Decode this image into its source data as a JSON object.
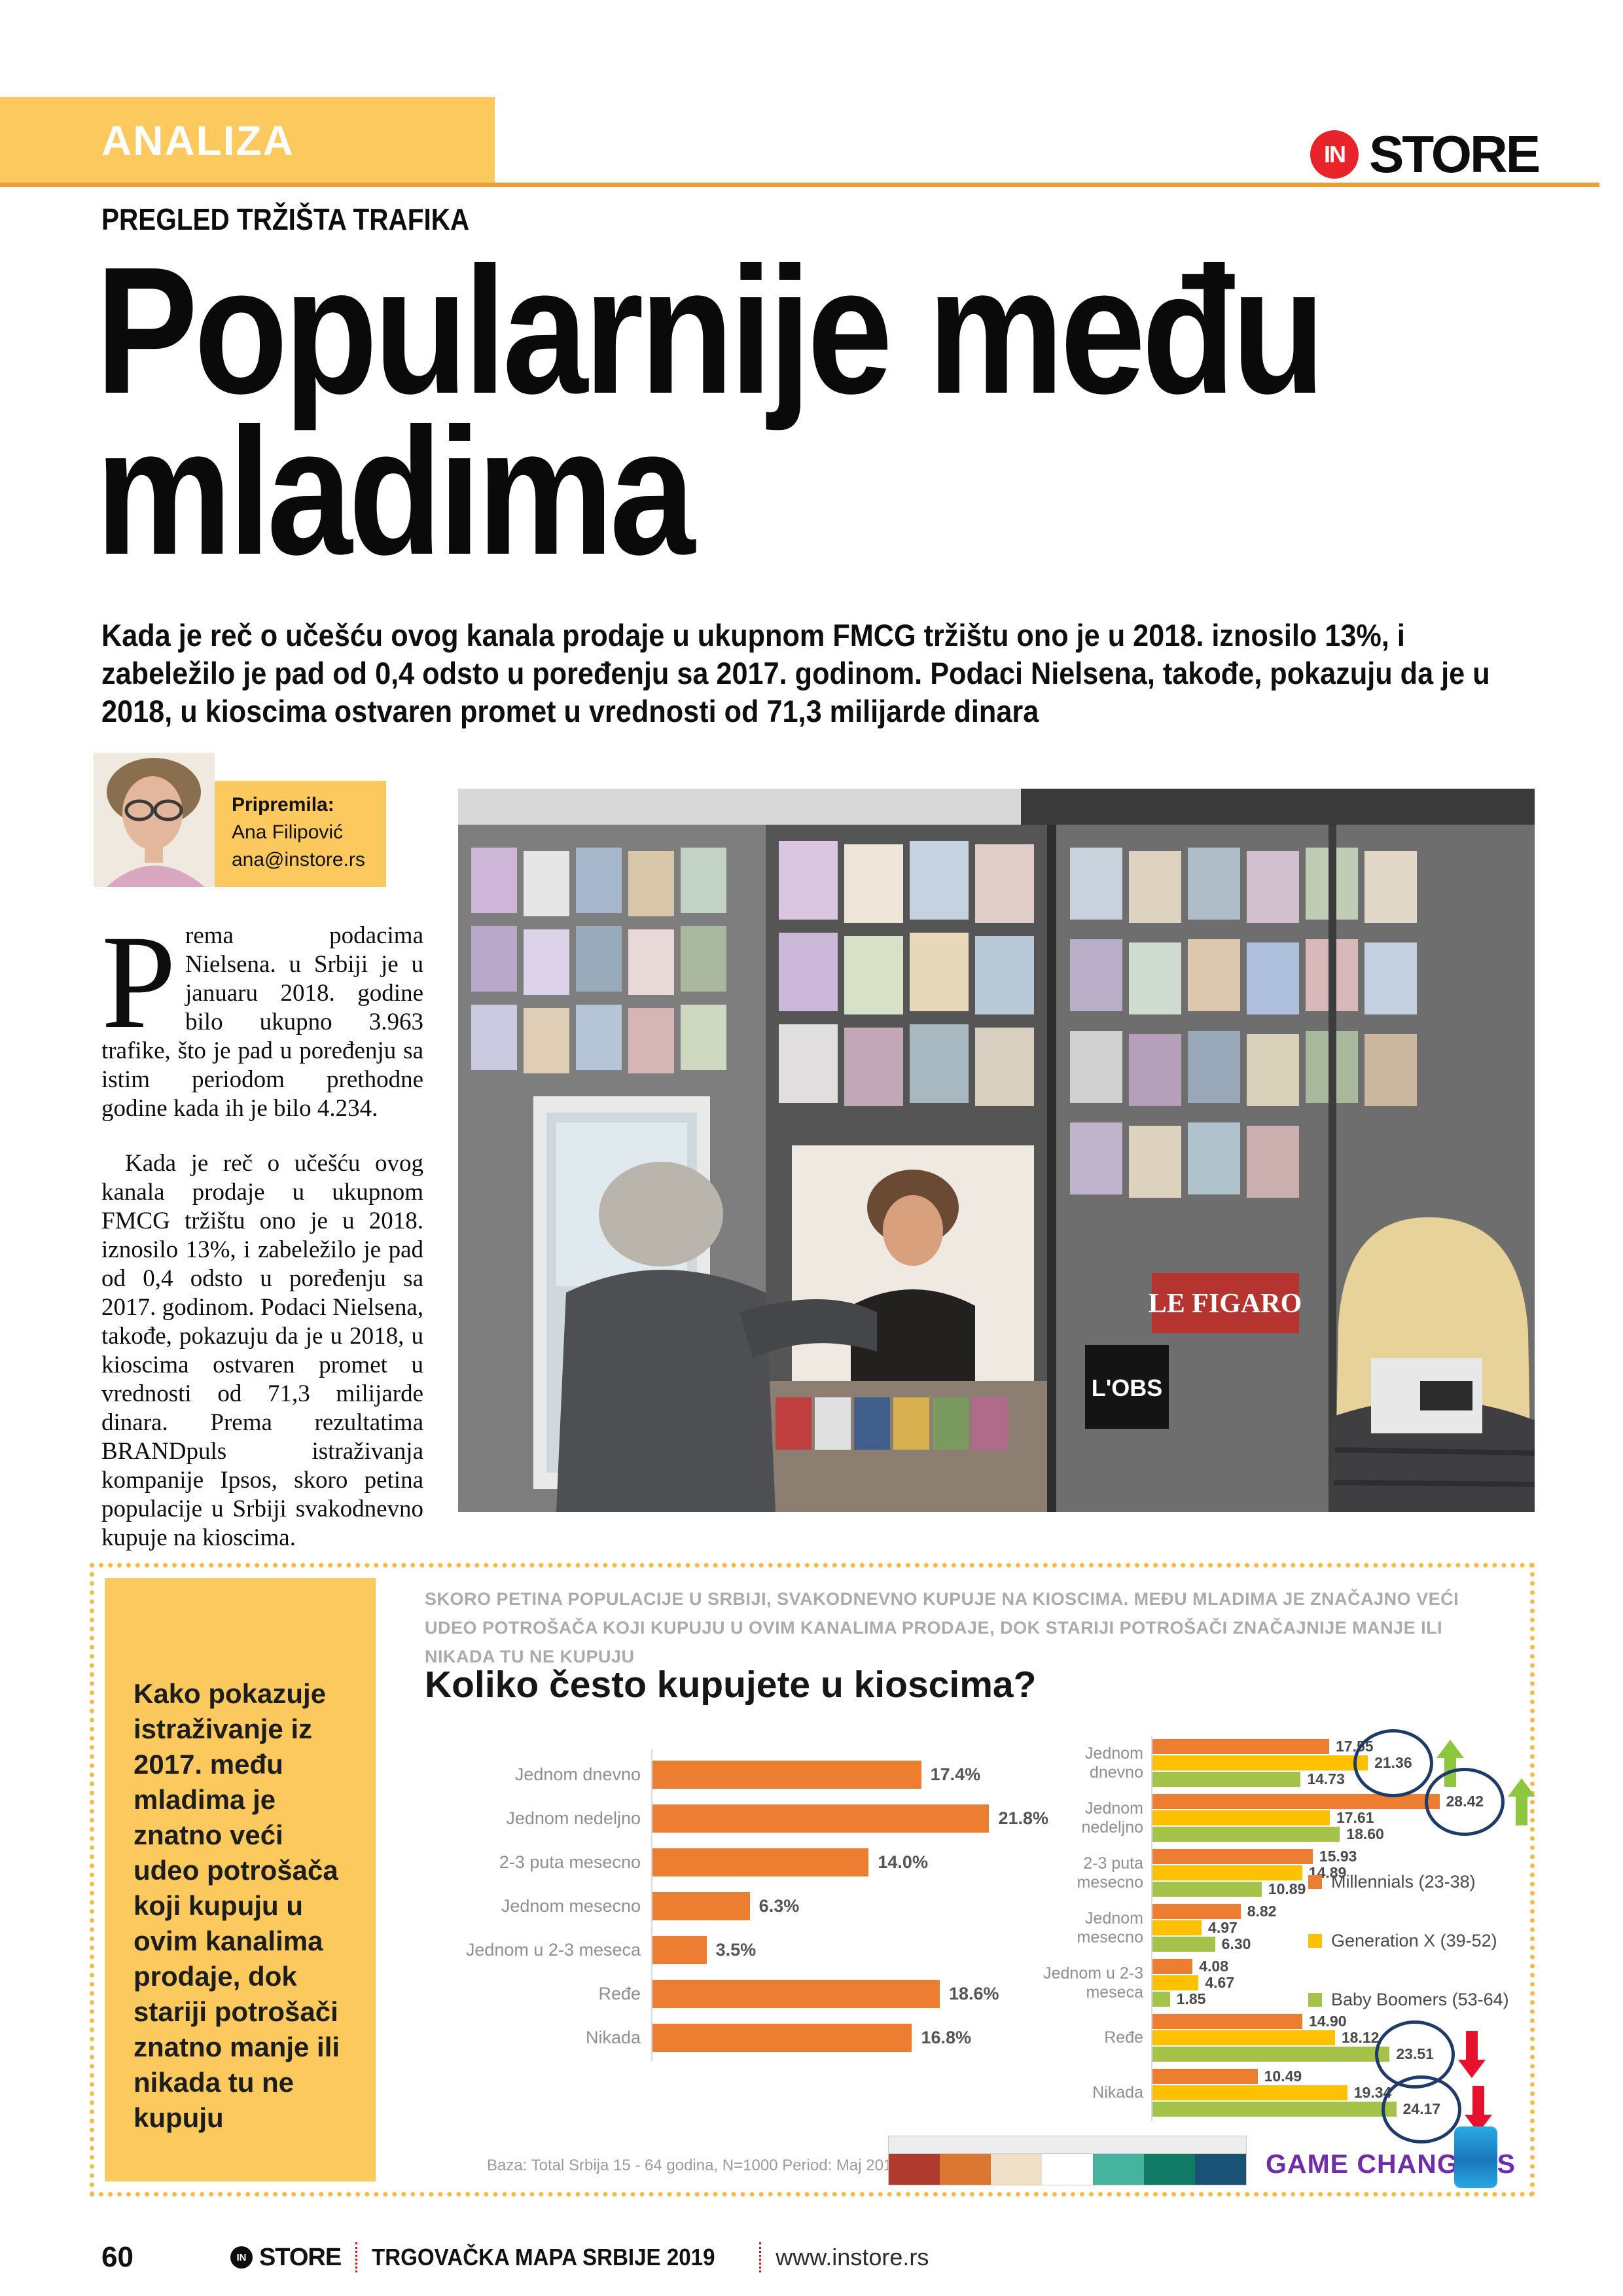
{
  "page": {
    "section_label": "ANALIZA",
    "kicker": "PREGLED TRŽIŠTA TRAFIKA",
    "headline": "Popularnije među\nmladima",
    "lead": "Kada je reč o učešću ovog kanala prodaje u ukupnom FMCG tržištu ono je u 2018. iznosilo 13%, i zabeležilo je pad od 0,4 odsto u poređenju sa 2017. godinom.  Podaci Nielsena, takođe, pokazuju da je u 2018, u kioscima ostvaren promet u vrednosti od 71,3 milijarde dinara"
  },
  "brand": {
    "logo_in": "IN",
    "logo_store": "STORE"
  },
  "author": {
    "prepared_by_label": "Pripremila:",
    "name": "Ana Filipović",
    "email": "ana@instore.rs"
  },
  "article": {
    "dropcap": "P",
    "para1_rest": "rema podacima Nielsena. u Srbiji je u januaru 2018. godine bilo ukupno 3.963 trafike, što je pad u poređenju sa istim periodom prethodne godine kada ih je bilo 4.234.",
    "para2": "Kada je reč o učešću ovog kanala prodaje u ukupnom FMCG tržištu ono je u 2018. iznosilo 13%, i zabeležilo je pad od 0,4 odsto u poređenju sa 2017. godinom. Podaci Nielsena, takođe, pokazuju da je u 2018, u kioscima ostvaren promet u vrednosti od 71,3 milijarde dinara. Prema rezultatima BRANDpuls istraživanja kompanije Ipsos, skoro petina populacije u Srbiji svakodnevno kupuje na kioscima."
  },
  "sidebar_note": "Kako pokazuje istraživanje iz 2017. među mladima je znatno veći udeo potrošača koji kupuju u ovim kanalima prodaje, dok stariji potrošači znatno manje ili nikada tu ne kupuju",
  "photo": {
    "magazine_titles": [
      "LE FIGARO",
      "L'OBS"
    ]
  },
  "chart_data": {
    "type": "bar",
    "orientation": "horizontal",
    "intro": "SKORO PETINA POPULACIJE U SRBIJI, SVAKODNEVNO KUPUJE NA KIOSCIMA. MEĐU MLADIMA JE ZNAČAJNO VEĆI UDEO POTROŠAČA KOJI KUPUJU U OVIM KANALIMA PRODAJE, DOK STARIJI POTROŠAČI ZNAČAJNIJE MANJE ILI NIKADA TU NE KUPUJU",
    "title": "Koliko često kupujete u kioscima?",
    "categories": [
      "Jednom dnevno",
      "Jednom nedeljno",
      "2-3 puta mesecno",
      "Jednom mesecno",
      "Jednom u 2-3 meseca",
      "Ređe",
      "Nikada"
    ],
    "total_panel": {
      "name": "Total",
      "values": [
        17.4,
        21.8,
        14.0,
        6.3,
        3.5,
        18.6,
        16.8
      ],
      "bar_color": "#ED7D31"
    },
    "series": [
      {
        "name": "Millennials (23-38)",
        "color": "#ED7D31",
        "values": [
          17.55,
          28.42,
          15.93,
          8.82,
          4.08,
          14.9,
          10.49
        ]
      },
      {
        "name": "Generation X (39-52)",
        "color": "#FFC000",
        "values": [
          21.36,
          17.61,
          14.89,
          4.97,
          4.67,
          18.12,
          19.34
        ]
      },
      {
        "name": "Baby Boomers (53-64)",
        "color": "#A5C249",
        "values": [
          14.73,
          18.6,
          10.89,
          6.3,
          1.85,
          23.51,
          24.17
        ]
      }
    ],
    "annotations": [
      {
        "category_index": 0,
        "series_index": 1,
        "circled": true,
        "arrow": "up"
      },
      {
        "category_index": 1,
        "series_index": 0,
        "circled": true,
        "arrow": "up"
      },
      {
        "category_index": 5,
        "series_index": 2,
        "circled": true,
        "arrow": "down"
      },
      {
        "category_index": 6,
        "series_index": 2,
        "circled": true,
        "arrow": "down"
      }
    ],
    "arrow_colors": {
      "up": "#8DC63F",
      "down": "#E8112D"
    },
    "annotation_circle_color": "#1E3A66",
    "source": "Baza: Total Srbija 15 - 64 godina, N=1000 Period: Maj 2017.",
    "branding": "GAME CHANGERS",
    "legend_position": "right",
    "mini_table_colors": [
      "#b03a2e",
      "#dc7633",
      "#f0e0c8",
      "#ffffff",
      "#45b39d",
      "#117a65",
      "#1a5276"
    ]
  },
  "footer": {
    "page_number": "60",
    "brand_in": "IN",
    "brand_store": "STORE",
    "edition": "TRGOVAČKA MAPA SRBIJE 2019",
    "website": "www.instore.rs"
  },
  "colors": {
    "accent_yellow": "#FBC95E",
    "rule_orange": "#E8A03C",
    "logo_red": "#E8232A",
    "bar_orange": "#ED7D31",
    "bar_gold": "#FFC000",
    "bar_green": "#A5C249",
    "branding_purple": "#6F2DA8"
  }
}
